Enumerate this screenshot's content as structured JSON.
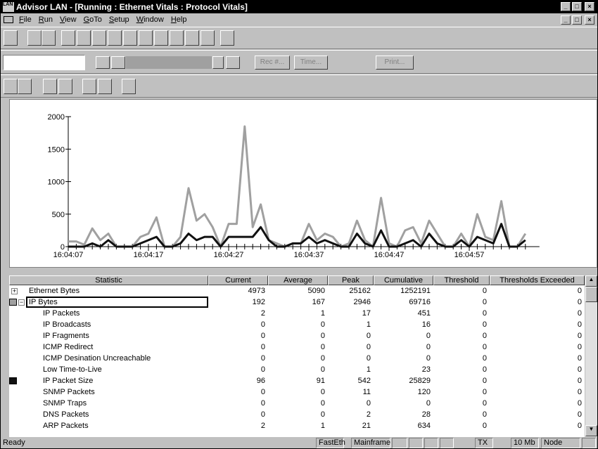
{
  "window": {
    "title": "Advisor LAN - [Running : Ethernet Vitals : Protocol Vitals]"
  },
  "menu": [
    "File",
    "Run",
    "View",
    "GoTo",
    "Setup",
    "Window",
    "Help"
  ],
  "toolbar": {
    "buttons": [
      "Rec #...",
      "Time...",
      "Print..."
    ]
  },
  "chart_data": {
    "type": "line",
    "x": [
      "16:04:07",
      null,
      null,
      null,
      null,
      null,
      null,
      null,
      null,
      null,
      "16:04:17",
      null,
      null,
      null,
      null,
      null,
      null,
      null,
      null,
      null,
      "16:04:27",
      null,
      null,
      null,
      null,
      null,
      null,
      null,
      null,
      null,
      "16:04:37",
      null,
      null,
      null,
      null,
      null,
      null,
      null,
      null,
      null,
      "16:04:47",
      null,
      null,
      null,
      null,
      null,
      null,
      null,
      null,
      null,
      "16:04:57",
      null,
      null,
      null,
      null,
      null,
      null,
      null
    ],
    "series": [
      {
        "color": "#a0a0a0",
        "values": [
          80,
          80,
          30,
          280,
          100,
          200,
          0,
          0,
          0,
          150,
          200,
          450,
          0,
          0,
          150,
          900,
          400,
          500,
          300,
          0,
          350,
          350,
          1850,
          300,
          650,
          100,
          50,
          0,
          50,
          50,
          350,
          100,
          200,
          150,
          0,
          50,
          400,
          100,
          0,
          750,
          50,
          0,
          250,
          300,
          50,
          400,
          200,
          0,
          0,
          200,
          0,
          500,
          150,
          100,
          700,
          0,
          0,
          200
        ]
      },
      {
        "color": "#111111",
        "values": [
          0,
          0,
          0,
          50,
          0,
          100,
          0,
          0,
          0,
          50,
          100,
          150,
          0,
          0,
          50,
          200,
          100,
          150,
          150,
          0,
          150,
          150,
          150,
          150,
          300,
          100,
          0,
          0,
          50,
          50,
          150,
          50,
          100,
          50,
          0,
          0,
          200,
          50,
          0,
          250,
          0,
          0,
          50,
          100,
          0,
          200,
          50,
          0,
          0,
          100,
          0,
          150,
          100,
          50,
          350,
          0,
          0,
          100
        ]
      }
    ],
    "ylim": [
      0,
      2000
    ],
    "yticks": [
      0,
      500,
      1000,
      1500,
      2000
    ]
  },
  "table": {
    "columns": [
      "Statistic",
      "Current",
      "Average",
      "Peak",
      "Cumulative",
      "Threshold",
      "Thresholds Exceeded"
    ],
    "rows": [
      {
        "cells": [
          "Ethernet Bytes",
          "4973",
          "5090",
          "25162",
          "1252191",
          "0",
          "0"
        ],
        "expanded": false
      },
      {
        "cells": [
          "IP Bytes",
          "192",
          "167",
          "2946",
          "69716",
          "0",
          "0"
        ],
        "expanded": true,
        "swatch": "#a0a0a0"
      },
      {
        "cells": [
          "IP Packets",
          "2",
          "1",
          "17",
          "451",
          "0",
          "0"
        ]
      },
      {
        "cells": [
          "IP Broadcasts",
          "0",
          "0",
          "1",
          "16",
          "0",
          "0"
        ]
      },
      {
        "cells": [
          "IP Fragments",
          "0",
          "0",
          "0",
          "0",
          "0",
          "0"
        ]
      },
      {
        "cells": [
          "ICMP Redirect",
          "0",
          "0",
          "0",
          "0",
          "0",
          "0"
        ]
      },
      {
        "cells": [
          "ICMP Desination Uncreachable",
          "0",
          "0",
          "0",
          "0",
          "0",
          "0"
        ]
      },
      {
        "cells": [
          "Low Time-to-Live",
          "0",
          "0",
          "1",
          "23",
          "0",
          "0"
        ]
      },
      {
        "cells": [
          "IP Packet Size",
          "96",
          "91",
          "542",
          "25829",
          "0",
          "0"
        ],
        "swatch": "#111111"
      },
      {
        "cells": [
          "SNMP Packets",
          "0",
          "0",
          "11",
          "120",
          "0",
          "0"
        ]
      },
      {
        "cells": [
          "SNMP Traps",
          "0",
          "0",
          "0",
          "0",
          "0",
          "0"
        ]
      },
      {
        "cells": [
          "DNS Packets",
          "0",
          "0",
          "2",
          "28",
          "0",
          "0"
        ]
      },
      {
        "cells": [
          "ARP Packets",
          "2",
          "1",
          "21",
          "634",
          "0",
          "0"
        ]
      }
    ]
  },
  "status": {
    "left": "Ready",
    "panes": [
      "FastEth",
      "Mainframe",
      "TX",
      "10 Mb",
      "Node HDX"
    ]
  }
}
